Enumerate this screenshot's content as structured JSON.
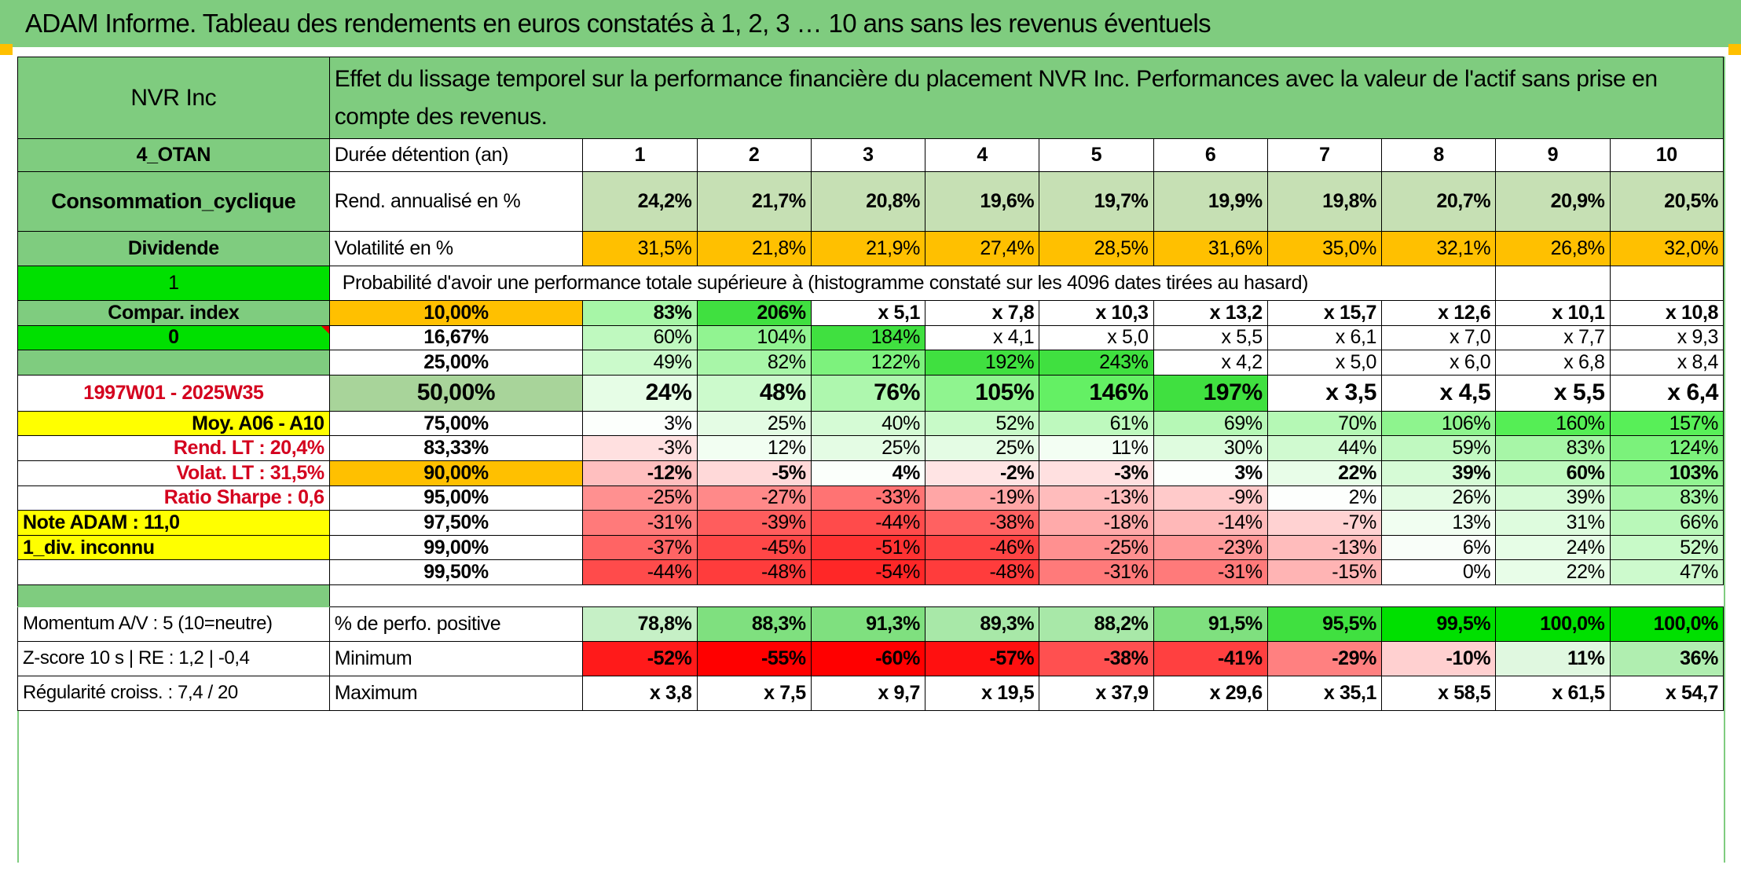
{
  "title": "ADAM Informe. Tableau des rendements en euros constatés à 1, 2, 3 … 10 ans sans les revenus éventuels",
  "header": {
    "asset": "NVR Inc",
    "description": "Effet du lissage temporel sur la performance financière du placement NVR Inc. Performances avec la valeur de l'actif sans prise en compte des revenus."
  },
  "left": {
    "code": "4_OTAN",
    "sector": "Consommation_cyclique",
    "dividend": "Dividende",
    "flag1": "1",
    "compar": "Compar. index",
    "flag0": "0",
    "blank": "",
    "period": "1997W01 - 2025W35",
    "moy": "Moy. A06 - A10",
    "rend_lt": "Rend. LT :    20,4%",
    "volat_lt": "Volat. LT :    31,5%",
    "sharpe": "Ratio Sharpe :    0,6",
    "note": "Note ADAM : 11,0",
    "div_unknown": "1_div. inconnu",
    "momentum": "Momentum A/V : 5 (10=neutre)",
    "zscore": "Z-score 10 s | RE : 1,2 | -0,4",
    "regularite": "Régularité croiss. : 7,4 / 20"
  },
  "duration_label": "Durée détention (an)",
  "years": [
    "1",
    "2",
    "3",
    "4",
    "5",
    "6",
    "7",
    "8",
    "9",
    "10"
  ],
  "rend_label": "Rend. annualisé en %",
  "rend": [
    "24,2%",
    "21,7%",
    "20,8%",
    "19,6%",
    "19,7%",
    "19,9%",
    "19,8%",
    "20,7%",
    "20,9%",
    "20,5%"
  ],
  "vol_label": "Volatilité en %",
  "vol": [
    "31,5%",
    "21,8%",
    "21,9%",
    "27,4%",
    "28,5%",
    "31,6%",
    "35,0%",
    "32,1%",
    "26,8%",
    "32,0%"
  ],
  "prob_label": "Probabilité d'avoir une performance totale supérieure à (histogramme constaté sur les 4096 dates tirées au hasard)",
  "quantiles": [
    {
      "p": "10,00%",
      "v": [
        "83%",
        "206%",
        "x 5,1",
        "x 7,8",
        "x 10,3",
        "x 13,2",
        "x 15,7",
        "x 12,6",
        "x 10,1",
        "x 10,8"
      ]
    },
    {
      "p": "16,67%",
      "v": [
        "60%",
        "104%",
        "184%",
        "x 4,1",
        "x 5,0",
        "x 5,5",
        "x 6,1",
        "x 7,0",
        "x 7,7",
        "x 9,3"
      ]
    },
    {
      "p": "25,00%",
      "v": [
        "49%",
        "82%",
        "122%",
        "192%",
        "243%",
        "x 4,2",
        "x 5,0",
        "x 6,0",
        "x 6,8",
        "x 8,4"
      ]
    },
    {
      "p": "50,00%",
      "v": [
        "24%",
        "48%",
        "76%",
        "105%",
        "146%",
        "197%",
        "x 3,5",
        "x 4,5",
        "x 5,5",
        "x 6,4"
      ]
    },
    {
      "p": "75,00%",
      "v": [
        "3%",
        "25%",
        "40%",
        "52%",
        "61%",
        "69%",
        "70%",
        "106%",
        "160%",
        "157%"
      ]
    },
    {
      "p": "83,33%",
      "v": [
        "-3%",
        "12%",
        "25%",
        "25%",
        "11%",
        "30%",
        "44%",
        "59%",
        "83%",
        "124%"
      ]
    },
    {
      "p": "90,00%",
      "v": [
        "-12%",
        "-5%",
        "4%",
        "-2%",
        "-3%",
        "3%",
        "22%",
        "39%",
        "60%",
        "103%"
      ]
    },
    {
      "p": "95,00%",
      "v": [
        "-25%",
        "-27%",
        "-33%",
        "-19%",
        "-13%",
        "-9%",
        "2%",
        "26%",
        "39%",
        "83%"
      ]
    },
    {
      "p": "97,50%",
      "v": [
        "-31%",
        "-39%",
        "-44%",
        "-38%",
        "-18%",
        "-14%",
        "-7%",
        "13%",
        "31%",
        "66%"
      ]
    },
    {
      "p": "99,00%",
      "v": [
        "-37%",
        "-45%",
        "-51%",
        "-46%",
        "-25%",
        "-23%",
        "-13%",
        "6%",
        "24%",
        "52%"
      ]
    },
    {
      "p": "99,50%",
      "v": [
        "-44%",
        "-48%",
        "-54%",
        "-48%",
        "-31%",
        "-31%",
        "-15%",
        "0%",
        "22%",
        "47%"
      ]
    }
  ],
  "pos_label": "% de perfo. positive",
  "pos": [
    "78,8%",
    "88,3%",
    "91,3%",
    "89,3%",
    "88,2%",
    "91,5%",
    "95,5%",
    "99,5%",
    "100,0%",
    "100,0%"
  ],
  "min_label": "Minimum",
  "min": [
    "-52%",
    "-55%",
    "-60%",
    "-57%",
    "-38%",
    "-41%",
    "-29%",
    "-10%",
    "11%",
    "36%"
  ],
  "max_label": "Maximum",
  "max": [
    "x 3,8",
    "x 7,5",
    "x 9,7",
    "x 19,5",
    "x 37,9",
    "x 29,6",
    "x 35,1",
    "x 58,5",
    "x 61,5",
    "x 54,7"
  ],
  "colors": {
    "header_green": "#7fcc7f",
    "bright_green": "#00e000",
    "orange": "#ffc000",
    "yellow": "#ffff00",
    "label_red": "#d4001e"
  }
}
